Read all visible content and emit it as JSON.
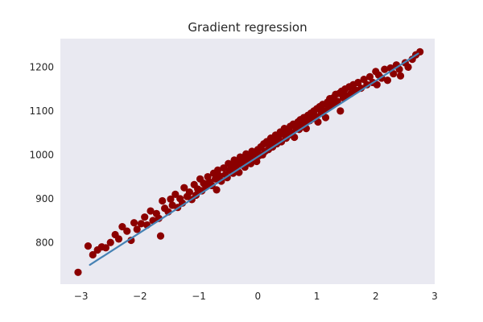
{
  "chart_data": {
    "type": "scatter",
    "title": "Gradient regression",
    "xlabel": "",
    "ylabel": "",
    "xlim": [
      -3.35,
      3.0
    ],
    "ylim": [
      705,
      1265
    ],
    "xticks": [
      -3,
      -2,
      -1,
      0,
      1,
      2,
      3
    ],
    "yticks": [
      800,
      900,
      1000,
      1100,
      1200
    ],
    "xtick_labels": [
      "−3",
      "−2",
      "−1",
      "0",
      "1",
      "2",
      "3"
    ],
    "ytick_labels": [
      "800",
      "900",
      "1000",
      "1100",
      "1200"
    ],
    "grid": false,
    "background_color": "#e9e9f1",
    "point_color": "#8b0000",
    "line_color": "#4682b4",
    "fit_line": {
      "x": [
        -2.85,
        2.72
      ],
      "y": [
        749,
        1231
      ]
    },
    "points": [
      {
        "x": -3.05,
        "y": 732
      },
      {
        "x": -2.88,
        "y": 792
      },
      {
        "x": -2.8,
        "y": 772
      },
      {
        "x": -2.72,
        "y": 783
      },
      {
        "x": -2.65,
        "y": 790
      },
      {
        "x": -2.58,
        "y": 788
      },
      {
        "x": -2.5,
        "y": 800
      },
      {
        "x": -2.42,
        "y": 818
      },
      {
        "x": -2.36,
        "y": 808
      },
      {
        "x": -2.3,
        "y": 836
      },
      {
        "x": -2.22,
        "y": 826
      },
      {
        "x": -2.15,
        "y": 805
      },
      {
        "x": -2.1,
        "y": 845
      },
      {
        "x": -2.05,
        "y": 830
      },
      {
        "x": -1.98,
        "y": 843
      },
      {
        "x": -1.92,
        "y": 858
      },
      {
        "x": -1.88,
        "y": 840
      },
      {
        "x": -1.82,
        "y": 872
      },
      {
        "x": -1.78,
        "y": 850
      },
      {
        "x": -1.72,
        "y": 866
      },
      {
        "x": -1.68,
        "y": 855
      },
      {
        "x": -1.65,
        "y": 815
      },
      {
        "x": -1.62,
        "y": 895
      },
      {
        "x": -1.58,
        "y": 878
      },
      {
        "x": -1.52,
        "y": 870
      },
      {
        "x": -1.48,
        "y": 899
      },
      {
        "x": -1.45,
        "y": 885
      },
      {
        "x": -1.4,
        "y": 910
      },
      {
        "x": -1.36,
        "y": 880
      },
      {
        "x": -1.32,
        "y": 900
      },
      {
        "x": -1.28,
        "y": 890
      },
      {
        "x": -1.25,
        "y": 925
      },
      {
        "x": -1.2,
        "y": 905
      },
      {
        "x": -1.16,
        "y": 915
      },
      {
        "x": -1.12,
        "y": 898
      },
      {
        "x": -1.08,
        "y": 932
      },
      {
        "x": -1.05,
        "y": 908
      },
      {
        "x": -1.02,
        "y": 922
      },
      {
        "x": -0.98,
        "y": 945
      },
      {
        "x": -0.95,
        "y": 918
      },
      {
        "x": -0.92,
        "y": 935
      },
      {
        "x": -0.88,
        "y": 928
      },
      {
        "x": -0.85,
        "y": 950
      },
      {
        "x": -0.82,
        "y": 938
      },
      {
        "x": -0.78,
        "y": 930
      },
      {
        "x": -0.75,
        "y": 958
      },
      {
        "x": -0.72,
        "y": 945
      },
      {
        "x": -0.7,
        "y": 920
      },
      {
        "x": -0.68,
        "y": 965
      },
      {
        "x": -0.65,
        "y": 952
      },
      {
        "x": -0.62,
        "y": 940
      },
      {
        "x": -0.58,
        "y": 970
      },
      {
        "x": -0.55,
        "y": 955
      },
      {
        "x": -0.52,
        "y": 948
      },
      {
        "x": -0.5,
        "y": 980
      },
      {
        "x": -0.48,
        "y": 965
      },
      {
        "x": -0.45,
        "y": 975
      },
      {
        "x": -0.42,
        "y": 958
      },
      {
        "x": -0.4,
        "y": 988
      },
      {
        "x": -0.38,
        "y": 970
      },
      {
        "x": -0.35,
        "y": 982
      },
      {
        "x": -0.32,
        "y": 960
      },
      {
        "x": -0.3,
        "y": 995
      },
      {
        "x": -0.28,
        "y": 978
      },
      {
        "x": -0.25,
        "y": 990
      },
      {
        "x": -0.22,
        "y": 972
      },
      {
        "x": -0.2,
        "y": 1002
      },
      {
        "x": -0.18,
        "y": 985
      },
      {
        "x": -0.15,
        "y": 996
      },
      {
        "x": -0.12,
        "y": 980
      },
      {
        "x": -0.1,
        "y": 1008
      },
      {
        "x": -0.08,
        "y": 992
      },
      {
        "x": -0.05,
        "y": 1003
      },
      {
        "x": -0.02,
        "y": 985
      },
      {
        "x": 0.0,
        "y": 1012
      },
      {
        "x": 0.02,
        "y": 998
      },
      {
        "x": 0.05,
        "y": 1018
      },
      {
        "x": 0.08,
        "y": 1000
      },
      {
        "x": 0.1,
        "y": 1025
      },
      {
        "x": 0.12,
        "y": 1008
      },
      {
        "x": 0.15,
        "y": 1030
      },
      {
        "x": 0.18,
        "y": 1012
      },
      {
        "x": 0.2,
        "y": 1022
      },
      {
        "x": 0.22,
        "y": 1038
      },
      {
        "x": 0.25,
        "y": 1018
      },
      {
        "x": 0.28,
        "y": 1032
      },
      {
        "x": 0.3,
        "y": 1045
      },
      {
        "x": 0.32,
        "y": 1025
      },
      {
        "x": 0.35,
        "y": 1040
      },
      {
        "x": 0.38,
        "y": 1052
      },
      {
        "x": 0.4,
        "y": 1030
      },
      {
        "x": 0.42,
        "y": 1048
      },
      {
        "x": 0.45,
        "y": 1060
      },
      {
        "x": 0.48,
        "y": 1038
      },
      {
        "x": 0.5,
        "y": 1055
      },
      {
        "x": 0.52,
        "y": 1045
      },
      {
        "x": 0.55,
        "y": 1065
      },
      {
        "x": 0.58,
        "y": 1050
      },
      {
        "x": 0.6,
        "y": 1070
      },
      {
        "x": 0.62,
        "y": 1040
      },
      {
        "x": 0.65,
        "y": 1062
      },
      {
        "x": 0.68,
        "y": 1075
      },
      {
        "x": 0.7,
        "y": 1058
      },
      {
        "x": 0.72,
        "y": 1080
      },
      {
        "x": 0.75,
        "y": 1068
      },
      {
        "x": 0.78,
        "y": 1085
      },
      {
        "x": 0.8,
        "y": 1072
      },
      {
        "x": 0.82,
        "y": 1060
      },
      {
        "x": 0.85,
        "y": 1090
      },
      {
        "x": 0.88,
        "y": 1078
      },
      {
        "x": 0.9,
        "y": 1095
      },
      {
        "x": 0.92,
        "y": 1082
      },
      {
        "x": 0.95,
        "y": 1100
      },
      {
        "x": 0.98,
        "y": 1088
      },
      {
        "x": 1.0,
        "y": 1105
      },
      {
        "x": 1.02,
        "y": 1075
      },
      {
        "x": 1.05,
        "y": 1110
      },
      {
        "x": 1.08,
        "y": 1095
      },
      {
        "x": 1.1,
        "y": 1115
      },
      {
        "x": 1.12,
        "y": 1100
      },
      {
        "x": 1.15,
        "y": 1085
      },
      {
        "x": 1.18,
        "y": 1120
      },
      {
        "x": 1.2,
        "y": 1108
      },
      {
        "x": 1.22,
        "y": 1128
      },
      {
        "x": 1.25,
        "y": 1112
      },
      {
        "x": 1.28,
        "y": 1130
      },
      {
        "x": 1.3,
        "y": 1118
      },
      {
        "x": 1.32,
        "y": 1138
      },
      {
        "x": 1.35,
        "y": 1122
      },
      {
        "x": 1.38,
        "y": 1140
      },
      {
        "x": 1.4,
        "y": 1100
      },
      {
        "x": 1.42,
        "y": 1145
      },
      {
        "x": 1.45,
        "y": 1130
      },
      {
        "x": 1.48,
        "y": 1150
      },
      {
        "x": 1.5,
        "y": 1135
      },
      {
        "x": 1.55,
        "y": 1155
      },
      {
        "x": 1.58,
        "y": 1140
      },
      {
        "x": 1.62,
        "y": 1160
      },
      {
        "x": 1.65,
        "y": 1148
      },
      {
        "x": 1.7,
        "y": 1165
      },
      {
        "x": 1.75,
        "y": 1152
      },
      {
        "x": 1.8,
        "y": 1172
      },
      {
        "x": 1.85,
        "y": 1160
      },
      {
        "x": 1.9,
        "y": 1178
      },
      {
        "x": 1.95,
        "y": 1165
      },
      {
        "x": 2.0,
        "y": 1190
      },
      {
        "x": 2.02,
        "y": 1160
      },
      {
        "x": 2.05,
        "y": 1182
      },
      {
        "x": 2.1,
        "y": 1175
      },
      {
        "x": 2.15,
        "y": 1195
      },
      {
        "x": 2.2,
        "y": 1170
      },
      {
        "x": 2.25,
        "y": 1198
      },
      {
        "x": 2.3,
        "y": 1185
      },
      {
        "x": 2.35,
        "y": 1205
      },
      {
        "x": 2.4,
        "y": 1195
      },
      {
        "x": 2.42,
        "y": 1180
      },
      {
        "x": 2.5,
        "y": 1210
      },
      {
        "x": 2.55,
        "y": 1200
      },
      {
        "x": 2.62,
        "y": 1218
      },
      {
        "x": 2.68,
        "y": 1228
      },
      {
        "x": 2.75,
        "y": 1235
      }
    ]
  }
}
